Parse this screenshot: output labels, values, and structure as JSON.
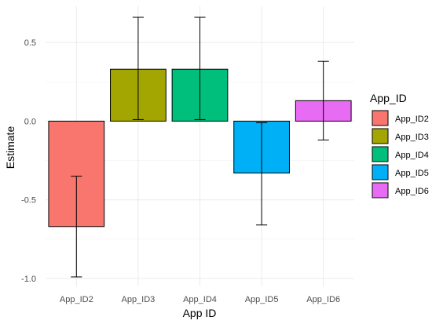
{
  "chart_data": {
    "type": "bar",
    "xlabel": "App ID",
    "ylabel": "Estimate",
    "categories": [
      "App_ID2",
      "App_ID3",
      "App_ID4",
      "App_ID5",
      "App_ID6"
    ],
    "values": [
      -0.67,
      0.33,
      0.33,
      -0.33,
      0.13
    ],
    "error_low": [
      -0.99,
      0.01,
      0.01,
      -0.66,
      -0.12
    ],
    "error_high": [
      -0.35,
      0.66,
      0.66,
      -0.01,
      0.38
    ],
    "colors": [
      "#F8766D",
      "#A3A500",
      "#00BF7D",
      "#00B0F6",
      "#E76BF3"
    ],
    "ylim": [
      -1.05,
      0.73
    ],
    "yticks": [
      -1.0,
      -0.5,
      0.0,
      0.5
    ],
    "ytick_labels": [
      "-1.0",
      "-0.5",
      "0.0",
      "0.5"
    ],
    "grid": true,
    "legend": {
      "title": "App_ID",
      "position": "right",
      "entries": [
        "App_ID2",
        "App_ID3",
        "App_ID4",
        "App_ID5",
        "App_ID6"
      ]
    }
  }
}
